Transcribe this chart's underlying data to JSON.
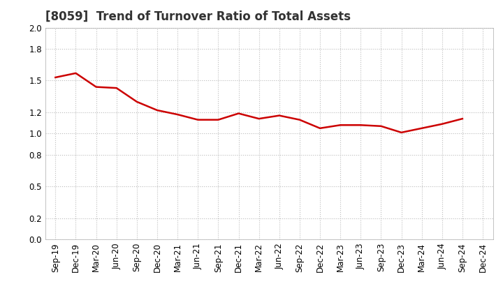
{
  "title": "[8059]  Trend of Turnover Ratio of Total Assets",
  "x_labels": [
    "Sep-19",
    "Dec-19",
    "Mar-20",
    "Jun-20",
    "Sep-20",
    "Dec-20",
    "Mar-21",
    "Jun-21",
    "Sep-21",
    "Dec-21",
    "Mar-22",
    "Jun-22",
    "Sep-22",
    "Dec-22",
    "Mar-23",
    "Jun-23",
    "Sep-23",
    "Dec-23",
    "Mar-24",
    "Jun-24",
    "Sep-24",
    "Dec-24"
  ],
  "y_values": [
    1.53,
    1.57,
    1.44,
    1.43,
    1.3,
    1.22,
    1.18,
    1.13,
    1.13,
    1.19,
    1.14,
    1.17,
    1.13,
    1.05,
    1.08,
    1.08,
    1.07,
    1.01,
    1.05,
    1.09,
    1.14,
    null
  ],
  "line_color": "#cc0000",
  "line_width": 1.8,
  "ylim": [
    0.0,
    2.0
  ],
  "yticks": [
    0.0,
    0.2,
    0.5,
    0.8,
    1.0,
    1.2,
    1.5,
    1.8,
    2.0
  ],
  "background_color": "#ffffff",
  "plot_bg_color": "#ffffff",
  "grid_color": "#bbbbbb",
  "title_fontsize": 12,
  "tick_fontsize": 8.5
}
